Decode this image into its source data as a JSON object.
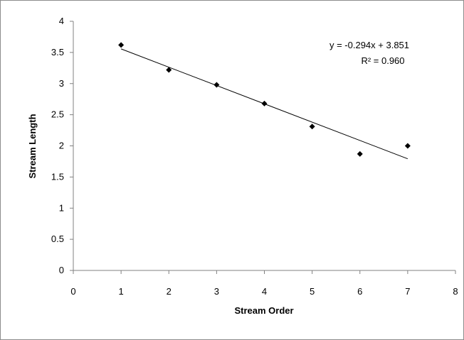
{
  "chart_data": {
    "type": "scatter",
    "title": "",
    "xlabel": "Stream Order",
    "ylabel": "Stream Length",
    "xlim": [
      0,
      8
    ],
    "ylim": [
      0,
      4
    ],
    "x_ticks": [
      "0",
      "1",
      "2",
      "3",
      "4",
      "5",
      "6",
      "7",
      "8"
    ],
    "y_ticks": [
      "0",
      "0.5",
      "1",
      "1.5",
      "2",
      "2.5",
      "3",
      "3.5",
      "4"
    ],
    "grid": false,
    "legend": "none",
    "marker": "diamond",
    "marker_color": "#000000",
    "series": [
      {
        "x": [
          1,
          2,
          3,
          4,
          5,
          6,
          7
        ],
        "y": [
          3.62,
          3.22,
          2.98,
          2.68,
          2.31,
          1.87,
          2.0
        ]
      }
    ],
    "trendline": {
      "type": "linear",
      "slope": -0.294,
      "intercept": 3.851,
      "x_range": [
        1,
        7
      ],
      "color": "#000000",
      "equation_label": "y = -0.294x + 3.851",
      "r2_label": "R² = 0.960"
    }
  }
}
